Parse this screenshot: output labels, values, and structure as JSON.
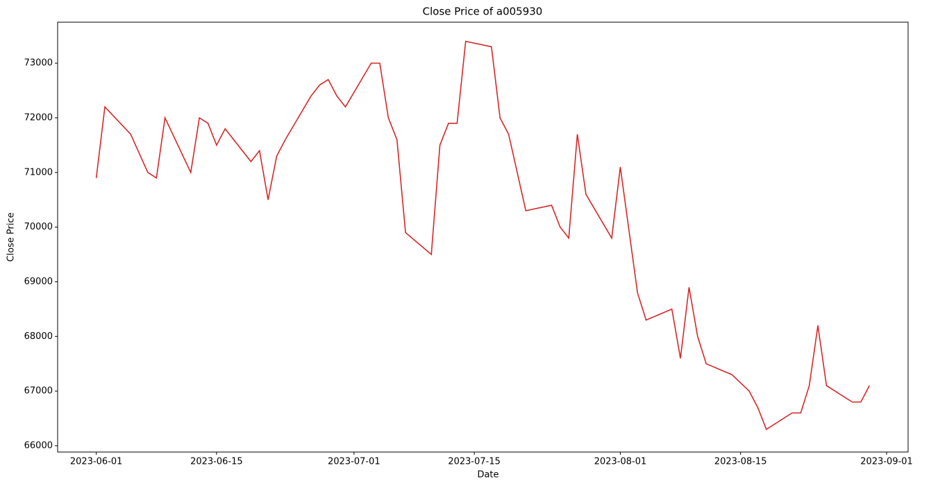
{
  "chart_data": {
    "type": "line",
    "title": "Close Price of a005930",
    "xlabel": "Date",
    "ylabel": "Close Price",
    "x": [
      "2023-06-01",
      "2023-06-02",
      "2023-06-05",
      "2023-06-07",
      "2023-06-08",
      "2023-06-09",
      "2023-06-12",
      "2023-06-13",
      "2023-06-14",
      "2023-06-15",
      "2023-06-16",
      "2023-06-19",
      "2023-06-20",
      "2023-06-21",
      "2023-06-22",
      "2023-06-23",
      "2023-06-26",
      "2023-06-27",
      "2023-06-28",
      "2023-06-29",
      "2023-06-30",
      "2023-07-03",
      "2023-07-04",
      "2023-07-05",
      "2023-07-06",
      "2023-07-07",
      "2023-07-10",
      "2023-07-11",
      "2023-07-12",
      "2023-07-13",
      "2023-07-14",
      "2023-07-17",
      "2023-07-18",
      "2023-07-19",
      "2023-07-21",
      "2023-07-24",
      "2023-07-25",
      "2023-07-26",
      "2023-07-27",
      "2023-07-28",
      "2023-07-31",
      "2023-08-01",
      "2023-08-03",
      "2023-08-04",
      "2023-08-07",
      "2023-08-08",
      "2023-08-09",
      "2023-08-10",
      "2023-08-11",
      "2023-08-14",
      "2023-08-16",
      "2023-08-17",
      "2023-08-18",
      "2023-08-21",
      "2023-08-22",
      "2023-08-23",
      "2023-08-24",
      "2023-08-25",
      "2023-08-28",
      "2023-08-29",
      "2023-08-30"
    ],
    "series": [
      {
        "name": "a005930",
        "color": "#d62728",
        "values": [
          70900,
          72200,
          71700,
          71000,
          70900,
          72000,
          71000,
          72000,
          71900,
          71500,
          71800,
          71200,
          71400,
          70500,
          71300,
          71600,
          72400,
          72600,
          72700,
          72400,
          72200,
          73000,
          73000,
          72000,
          71600,
          69900,
          69500,
          71500,
          71900,
          71900,
          73400,
          73300,
          72000,
          71700,
          70300,
          70400,
          70000,
          69800,
          71700,
          70600,
          69800,
          71100,
          68800,
          68300,
          68500,
          67600,
          68900,
          68000,
          67500,
          67300,
          67000,
          66700,
          66300,
          66600,
          66600,
          67100,
          68200,
          67100,
          66800,
          66800,
          67100
        ]
      }
    ],
    "xlim": [
      "2023-05-27T12:00",
      "2023-09-03T12:00"
    ],
    "xticks": [
      "2023-06-01",
      "2023-06-15",
      "2023-07-01",
      "2023-07-15",
      "2023-08-01",
      "2023-08-15",
      "2023-09-01"
    ],
    "ylim": [
      65885,
      73750
    ],
    "yticks": [
      66000,
      67000,
      68000,
      69000,
      70000,
      71000,
      72000,
      73000
    ],
    "grid": false
  }
}
